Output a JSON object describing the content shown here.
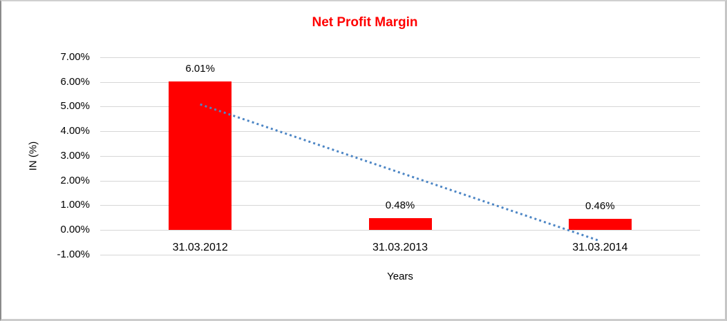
{
  "chart_data": {
    "type": "bar",
    "title": "Net Profit Margin",
    "title_color": "#FF0000",
    "categories": [
      "31.03.2012",
      "31.03.2013",
      "31.03.2014"
    ],
    "values": [
      6.01,
      0.48,
      0.46
    ],
    "value_labels": [
      "6.01%",
      "0.48%",
      "0.46%"
    ],
    "bar_color": "#FF0000",
    "xlabel": "Years",
    "ylabel": "IN (%)",
    "ylim": [
      -1,
      7
    ],
    "ytick_values": [
      7,
      6,
      5,
      4,
      3,
      2,
      1,
      0,
      -1
    ],
    "ytick_labels": [
      "7.00%",
      "6.00%",
      "5.00%",
      "4.00%",
      "3.00%",
      "2.00%",
      "1.00%",
      "0.00%",
      "-1.00%"
    ],
    "grid": true,
    "gridline_color": "#D6D6D6",
    "legend": "none",
    "trendline": {
      "type": "linear",
      "line_style": "dotted",
      "color": "#4D86C5",
      "start_value": 5.09,
      "end_value": -0.45
    }
  }
}
